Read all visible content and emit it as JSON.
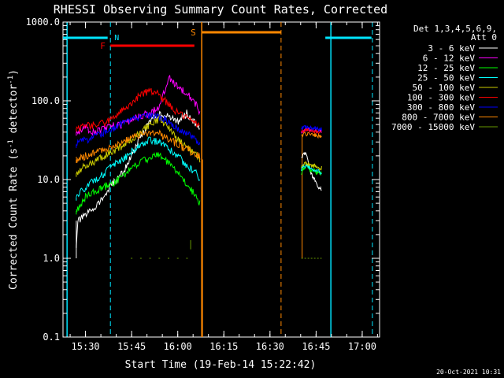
{
  "chart_data": {
    "type": "line",
    "title": "RHESSI Observing Summary Count Rates, Corrected",
    "xlabel": "Start Time (19-Feb-14 15:22:42)",
    "ylabel_main": "Corrected Count Rate (s",
    "ylabel_exp1": "-1",
    "ylabel_mid": " detector",
    "ylabel_exp2": "-1",
    "ylabel_end": ")",
    "yscale": "log",
    "ylim": [
      0.1,
      1000
    ],
    "xlim": [
      15.378,
      17.094
    ],
    "y_ticks": [
      {
        "value": 0.1,
        "label": "0.1"
      },
      {
        "value": 1,
        "label": "1.0"
      },
      {
        "value": 10,
        "label": "10.0"
      },
      {
        "value": 100,
        "label": "100.0"
      },
      {
        "value": 1000,
        "label": "1000.0"
      }
    ],
    "x_ticks": [
      {
        "value": 15.5,
        "label": "15:30"
      },
      {
        "value": 15.75,
        "label": "15:45"
      },
      {
        "value": 16.0,
        "label": "16:00"
      },
      {
        "value": 16.25,
        "label": "16:15"
      },
      {
        "value": 16.5,
        "label": "16:30"
      },
      {
        "value": 16.75,
        "label": "16:45"
      },
      {
        "value": 17.0,
        "label": "17:00"
      }
    ],
    "legend_header": [
      "Det 1,3,4,5,6,9,",
      "Att 0"
    ],
    "legend_position": "top-right",
    "series": [
      {
        "name": "3 - 6 keV",
        "color": "#ffffff",
        "x": [
          15.45,
          15.46,
          15.5,
          15.55,
          15.6,
          15.65,
          15.7,
          15.75,
          15.8,
          15.85,
          15.9,
          15.95,
          16.0,
          16.05,
          16.1,
          16.12
        ],
        "values": [
          1.5,
          3,
          3.5,
          4.5,
          6,
          9,
          12,
          20,
          35,
          55,
          70,
          62,
          55,
          70,
          50,
          42
        ]
      },
      {
        "name": "6 - 12 keV",
        "color": "#ff00ff",
        "x": [
          15.45,
          15.5,
          15.55,
          15.6,
          15.65,
          15.7,
          15.75,
          15.8,
          15.85,
          15.9,
          15.95,
          16.0,
          16.05,
          16.1,
          16.12
        ],
        "values": [
          40,
          45,
          40,
          45,
          48,
          50,
          58,
          65,
          70,
          85,
          200,
          150,
          130,
          90,
          70
        ]
      },
      {
        "name": "12 - 25 keV",
        "color": "#00ff00",
        "x": [
          15.45,
          15.5,
          15.55,
          15.6,
          15.65,
          15.7,
          15.75,
          15.8,
          15.85,
          15.9,
          15.95,
          16.0,
          16.05,
          16.1,
          16.12
        ],
        "values": [
          4,
          6,
          7,
          8,
          9,
          11,
          14,
          17,
          19,
          21,
          16,
          12,
          9,
          6,
          5
        ]
      },
      {
        "name": "25 - 50 keV",
        "color": "#00ffff",
        "x": [
          15.45,
          15.5,
          15.55,
          15.6,
          15.65,
          15.7,
          15.75,
          15.8,
          15.85,
          15.9,
          15.95,
          16.0,
          16.05,
          16.1,
          16.12
        ],
        "values": [
          6,
          8,
          10,
          12,
          15,
          18,
          23,
          28,
          32,
          30,
          25,
          20,
          15,
          12,
          10
        ]
      },
      {
        "name": "50 - 100 keV",
        "color": "#cccc00",
        "x": [
          15.45,
          15.5,
          15.55,
          15.6,
          15.65,
          15.7,
          15.75,
          15.8,
          15.85,
          15.9,
          15.95,
          16.0,
          16.05,
          16.1,
          16.12
        ],
        "values": [
          12,
          15,
          17,
          20,
          23,
          27,
          33,
          40,
          50,
          60,
          45,
          32,
          25,
          20,
          18
        ]
      },
      {
        "name": "100 - 300 keV",
        "color": "#ff0000",
        "x": [
          15.45,
          15.5,
          15.55,
          15.6,
          15.65,
          15.7,
          15.75,
          15.8,
          15.85,
          15.9,
          15.95,
          16.0,
          16.05,
          16.1,
          16.12
        ],
        "values": [
          45,
          48,
          50,
          52,
          60,
          75,
          95,
          120,
          135,
          120,
          90,
          70,
          60,
          52,
          48
        ]
      },
      {
        "name": "300 - 800 keV",
        "color": "#0000ff",
        "x": [
          15.45,
          15.5,
          15.55,
          15.6,
          15.65,
          15.7,
          15.75,
          15.8,
          15.85,
          15.9,
          15.95,
          16.0,
          16.05,
          16.1,
          16.12
        ],
        "values": [
          28,
          32,
          35,
          40,
          45,
          52,
          58,
          63,
          65,
          62,
          55,
          45,
          38,
          32,
          30
        ]
      },
      {
        "name": "800 - 7000 keV",
        "color": "#ff8800",
        "x": [
          15.45,
          15.5,
          15.55,
          15.6,
          15.65,
          15.7,
          15.75,
          15.8,
          15.85,
          15.9,
          15.95,
          16.0,
          16.05,
          16.1,
          16.12
        ],
        "values": [
          18,
          20,
          22,
          24,
          27,
          30,
          34,
          37,
          40,
          38,
          33,
          28,
          24,
          21,
          20
        ]
      },
      {
        "name": "7000 - 15000 keV",
        "color": "#669900",
        "x": [
          15.75,
          15.8,
          15.85,
          15.9,
          15.95,
          16.0,
          16.05
        ],
        "values": [
          1,
          1,
          1,
          1,
          1,
          1,
          1
        ]
      }
    ],
    "second_segment": {
      "x": [
        16.67,
        16.68,
        16.7,
        16.72,
        16.74,
        16.76,
        16.78
      ],
      "series": [
        {
          "name": "3 - 6 keV",
          "values": [
            18,
            22,
            20,
            12,
            10,
            8,
            7.5
          ]
        },
        {
          "name": "6 - 12 keV",
          "values": [
            40,
            42,
            43,
            42,
            42,
            41,
            40
          ]
        },
        {
          "name": "12 - 25 keV",
          "values": [
            12,
            14,
            15,
            13,
            13,
            12,
            12
          ]
        },
        {
          "name": "25 - 50 keV",
          "values": [
            13,
            15,
            15,
            14,
            13,
            13,
            12
          ]
        },
        {
          "name": "50 - 100 keV",
          "values": [
            14,
            16,
            16,
            15,
            15,
            14,
            14
          ]
        },
        {
          "name": "100 - 300 keV",
          "values": [
            40,
            42,
            42,
            41,
            41,
            40,
            40
          ]
        },
        {
          "name": "300 - 800 keV",
          "values": [
            45,
            46,
            46,
            45,
            45,
            44,
            44
          ]
        },
        {
          "name": "800 - 7000 keV",
          "values": [
            36,
            38,
            38,
            37,
            37,
            36,
            36
          ]
        },
        {
          "name": "7000 - 15000 keV",
          "values": [
            1,
            1,
            1,
            1,
            1,
            1,
            1
          ]
        }
      ]
    },
    "annotations": {
      "night_label": "N",
      "flare_label": "F",
      "saa_label": "S",
      "night_bars": [
        [
          15.378,
          15.62
        ],
        [
          16.8,
          17.05
        ]
      ],
      "flare_bar": [
        15.635,
        16.09
      ],
      "saa_bar": [
        16.13,
        16.56
      ],
      "cyan_solid_lines": [
        15.4,
        16.83
      ],
      "cyan_dashed_lines": [
        15.635,
        17.055
      ],
      "orange_solid_lines": [
        16.13
      ],
      "orange_dashed_lines": [
        16.56
      ],
      "orange_steps": [
        {
          "x": 16.13,
          "from": 0.1,
          "to": 18
        },
        {
          "x": 16.67,
          "from": 1,
          "to": 36
        }
      ]
    },
    "colors": {
      "background": "#000000",
      "axes": "#ffffff",
      "night": "#00e5ff",
      "flare": "#ff0000",
      "saa": "#ff8800"
    }
  },
  "footer_timestamp": "20-Oct-2021 10:31"
}
